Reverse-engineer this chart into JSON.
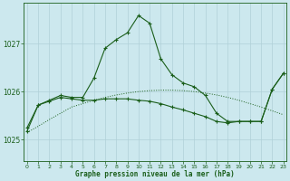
{
  "title": "Graphe pression niveau de la mer (hPa)",
  "background_color": "#cce8ee",
  "grid_color": "#b0d0d8",
  "line_color": "#1a5e1a",
  "x_ticks": [
    0,
    1,
    2,
    3,
    4,
    5,
    6,
    7,
    8,
    9,
    10,
    11,
    12,
    13,
    14,
    15,
    16,
    17,
    18,
    19,
    20,
    21,
    22,
    23
  ],
  "y_ticks": [
    1025,
    1026,
    1027
  ],
  "ylim": [
    1024.55,
    1027.85
  ],
  "xlim": [
    -0.3,
    23.3
  ],
  "series_dotted": {
    "x": [
      0,
      1,
      2,
      3,
      4,
      5,
      6,
      7,
      8,
      9,
      10,
      11,
      12,
      13,
      14,
      15,
      16,
      17,
      18,
      19,
      20,
      21,
      22,
      23
    ],
    "y": [
      1025.15,
      1025.28,
      1025.42,
      1025.55,
      1025.68,
      1025.75,
      1025.82,
      1025.88,
      1025.93,
      1025.97,
      1026.0,
      1026.02,
      1026.03,
      1026.03,
      1026.02,
      1026.0,
      1025.97,
      1025.93,
      1025.88,
      1025.82,
      1025.75,
      1025.68,
      1025.6,
      1025.52
    ]
  },
  "series_high": {
    "x": [
      0,
      1,
      2,
      3,
      4,
      5,
      6,
      7,
      8,
      9,
      10,
      11,
      12,
      13,
      14,
      15,
      16,
      17,
      18,
      19,
      20,
      21,
      22,
      23
    ],
    "y": [
      1025.25,
      1025.72,
      1025.82,
      1025.92,
      1025.88,
      1025.88,
      1026.28,
      1026.9,
      1027.08,
      1027.22,
      1027.58,
      1027.42,
      1026.68,
      1026.35,
      1026.18,
      1026.1,
      1025.92,
      1025.55,
      1025.38,
      1025.38,
      1025.38,
      1025.38,
      1026.05,
      1026.38
    ]
  },
  "series_flat": {
    "x": [
      0,
      1,
      2,
      3,
      4,
      5,
      6,
      7,
      8,
      9,
      10,
      11,
      12,
      13,
      14,
      15,
      16,
      17,
      18,
      19,
      20,
      21,
      22,
      23
    ],
    "y": [
      1025.18,
      1025.72,
      1025.8,
      1025.88,
      1025.85,
      1025.82,
      1025.82,
      1025.85,
      1025.85,
      1025.85,
      1025.82,
      1025.8,
      1025.75,
      1025.68,
      1025.62,
      1025.55,
      1025.48,
      1025.38,
      1025.35,
      1025.38,
      1025.38,
      1025.38,
      1026.05,
      1026.38
    ]
  }
}
